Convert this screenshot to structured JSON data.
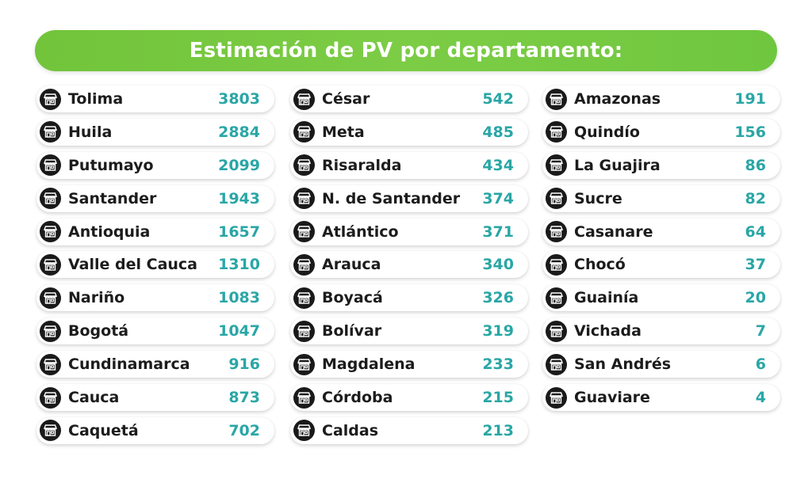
{
  "title": "Estimación de PV por departamento:",
  "icon_name": "store-icon",
  "colors": {
    "banner": "#77c940",
    "value": "#2aa6a6",
    "name": "#1c1c1c",
    "icon_bg": "#1a1a1a"
  },
  "columns": [
    [
      {
        "name": "Tolima",
        "value": "3803"
      },
      {
        "name": "Huila",
        "value": "2884"
      },
      {
        "name": "Putumayo",
        "value": "2099"
      },
      {
        "name": "Santander",
        "value": "1943"
      },
      {
        "name": "Antioquia",
        "value": "1657"
      },
      {
        "name": "Valle del Cauca",
        "value": "1310"
      },
      {
        "name": "Nariño",
        "value": "1083"
      },
      {
        "name": "Bogotá",
        "value": "1047"
      },
      {
        "name": "Cundinamarca",
        "value": "916"
      },
      {
        "name": "Cauca",
        "value": "873"
      },
      {
        "name": "Caquetá",
        "value": "702"
      }
    ],
    [
      {
        "name": "César",
        "value": "542"
      },
      {
        "name": "Meta",
        "value": "485"
      },
      {
        "name": "Risaralda",
        "value": "434"
      },
      {
        "name": "N. de Santander",
        "value": "374"
      },
      {
        "name": "Atlántico",
        "value": "371"
      },
      {
        "name": "Arauca",
        "value": "340"
      },
      {
        "name": "Boyacá",
        "value": "326"
      },
      {
        "name": "Bolívar",
        "value": "319"
      },
      {
        "name": "Magdalena",
        "value": "233"
      },
      {
        "name": "Córdoba",
        "value": "215"
      },
      {
        "name": "Caldas",
        "value": "213"
      }
    ],
    [
      {
        "name": "Amazonas",
        "value": "191"
      },
      {
        "name": "Quindío",
        "value": "156"
      },
      {
        "name": "La Guajira",
        "value": "86"
      },
      {
        "name": "Sucre",
        "value": "82"
      },
      {
        "name": "Casanare",
        "value": "64"
      },
      {
        "name": "Chocó",
        "value": "37"
      },
      {
        "name": "Guainía",
        "value": "20"
      },
      {
        "name": "Vichada",
        "value": "7"
      },
      {
        "name": "San Andrés",
        "value": "6"
      },
      {
        "name": "Guaviare",
        "value": "4"
      }
    ]
  ]
}
